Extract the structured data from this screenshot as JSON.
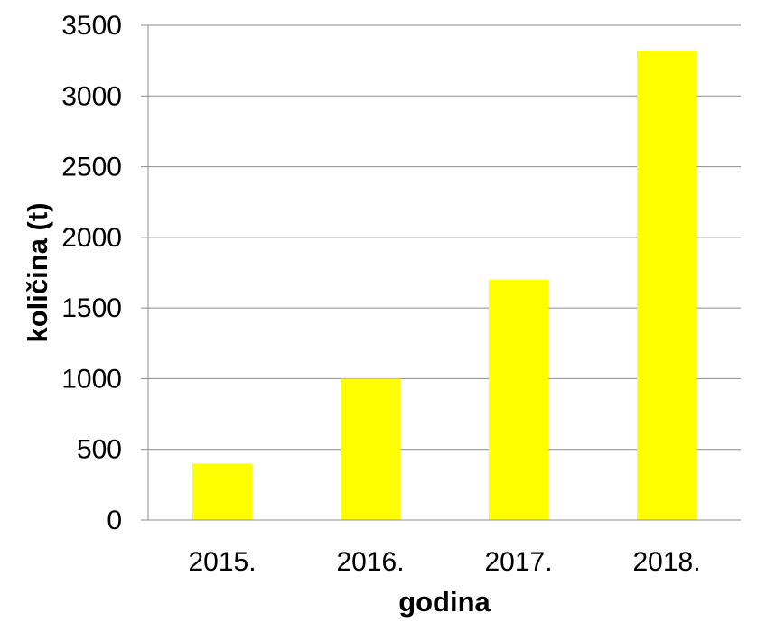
{
  "chart_data": {
    "type": "bar",
    "title": "",
    "xlabel": "godina",
    "ylabel": "količina (t)",
    "categories": [
      "2015.",
      "2016.",
      "2017.",
      "2018."
    ],
    "series": [
      {
        "values": [
          400,
          1000,
          1700,
          3320
        ],
        "color": "#ffff00"
      }
    ],
    "ylim": [
      0,
      3500
    ],
    "yticks": [
      0,
      500,
      1000,
      1500,
      2000,
      2500,
      3000,
      3500
    ],
    "ytick_labels": [
      "0",
      "500",
      "1000",
      "1500",
      "2000",
      "2500",
      "3000",
      "3500"
    ],
    "grid": true,
    "legend": "none"
  }
}
